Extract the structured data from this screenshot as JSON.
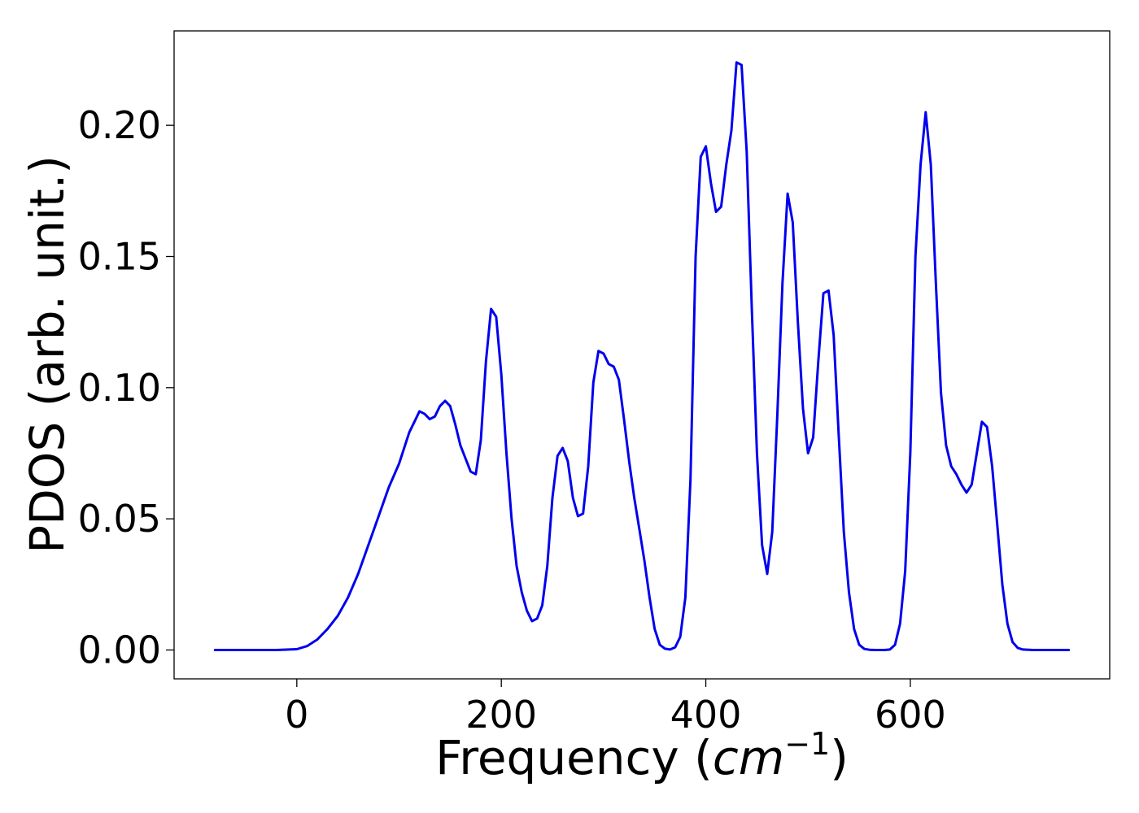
{
  "chart_data": {
    "type": "line",
    "title": "",
    "xlabel": "Frequency (",
    "xlabel_unit_base": "cm",
    "xlabel_unit_exp": "−1",
    "xlabel_close": ")",
    "ylabel": "PDOS (arb. unit.)",
    "xlim": [
      -120,
      795
    ],
    "ylim": [
      -0.011,
      0.236
    ],
    "xticks": [
      0,
      200,
      400,
      600
    ],
    "xtick_labels": [
      "0",
      "200",
      "400",
      "600"
    ],
    "yticks": [
      0.0,
      0.05,
      0.1,
      0.15,
      0.2
    ],
    "ytick_labels": [
      "0.00",
      "0.05",
      "0.10",
      "0.15",
      "0.20"
    ],
    "grid": false,
    "series": [
      {
        "color": "#0000ee",
        "x": [
          -80,
          -60,
          -40,
          -20,
          0,
          10,
          20,
          30,
          40,
          50,
          60,
          70,
          80,
          90,
          100,
          105,
          110,
          115,
          120,
          125,
          130,
          135,
          140,
          145,
          150,
          155,
          160,
          165,
          170,
          175,
          180,
          185,
          190,
          195,
          200,
          205,
          210,
          215,
          220,
          225,
          230,
          235,
          240,
          245,
          250,
          255,
          260,
          265,
          270,
          275,
          280,
          285,
          290,
          295,
          300,
          305,
          310,
          315,
          320,
          325,
          330,
          335,
          340,
          345,
          350,
          355,
          360,
          365,
          370,
          375,
          380,
          385,
          390,
          395,
          400,
          405,
          410,
          415,
          420,
          425,
          430,
          435,
          440,
          445,
          450,
          455,
          460,
          465,
          470,
          475,
          480,
          485,
          490,
          495,
          500,
          505,
          510,
          515,
          520,
          525,
          530,
          535,
          540,
          545,
          550,
          555,
          560,
          565,
          570,
          575,
          580,
          585,
          590,
          595,
          600,
          605,
          610,
          615,
          620,
          625,
          630,
          635,
          640,
          645,
          650,
          655,
          660,
          665,
          670,
          675,
          680,
          685,
          690,
          695,
          700,
          705,
          710,
          720,
          740,
          755
        ],
        "values": [
          0.0,
          0.0,
          0.0,
          0.0,
          0.0003,
          0.0015,
          0.004,
          0.008,
          0.013,
          0.02,
          0.029,
          0.04,
          0.051,
          0.062,
          0.071,
          0.077,
          0.083,
          0.087,
          0.091,
          0.09,
          0.088,
          0.089,
          0.093,
          0.095,
          0.093,
          0.086,
          0.078,
          0.073,
          0.068,
          0.067,
          0.08,
          0.11,
          0.13,
          0.127,
          0.105,
          0.075,
          0.05,
          0.032,
          0.022,
          0.015,
          0.011,
          0.012,
          0.017,
          0.032,
          0.058,
          0.074,
          0.077,
          0.072,
          0.058,
          0.051,
          0.052,
          0.07,
          0.102,
          0.114,
          0.113,
          0.109,
          0.108,
          0.103,
          0.088,
          0.072,
          0.058,
          0.046,
          0.034,
          0.02,
          0.008,
          0.002,
          0.0005,
          0.0002,
          0.001,
          0.005,
          0.02,
          0.065,
          0.15,
          0.188,
          0.192,
          0.178,
          0.167,
          0.169,
          0.185,
          0.198,
          0.224,
          0.223,
          0.19,
          0.13,
          0.075,
          0.04,
          0.029,
          0.045,
          0.09,
          0.14,
          0.174,
          0.163,
          0.125,
          0.092,
          0.075,
          0.081,
          0.11,
          0.136,
          0.137,
          0.12,
          0.082,
          0.045,
          0.022,
          0.008,
          0.002,
          0.0004,
          0.0001,
          0.0,
          0.0,
          0.0,
          0.0002,
          0.002,
          0.01,
          0.03,
          0.075,
          0.15,
          0.185,
          0.205,
          0.185,
          0.14,
          0.098,
          0.078,
          0.07,
          0.067,
          0.063,
          0.06,
          0.063,
          0.075,
          0.087,
          0.085,
          0.07,
          0.048,
          0.025,
          0.01,
          0.003,
          0.0008,
          0.0002,
          0.0,
          0.0,
          0.0
        ]
      }
    ]
  }
}
